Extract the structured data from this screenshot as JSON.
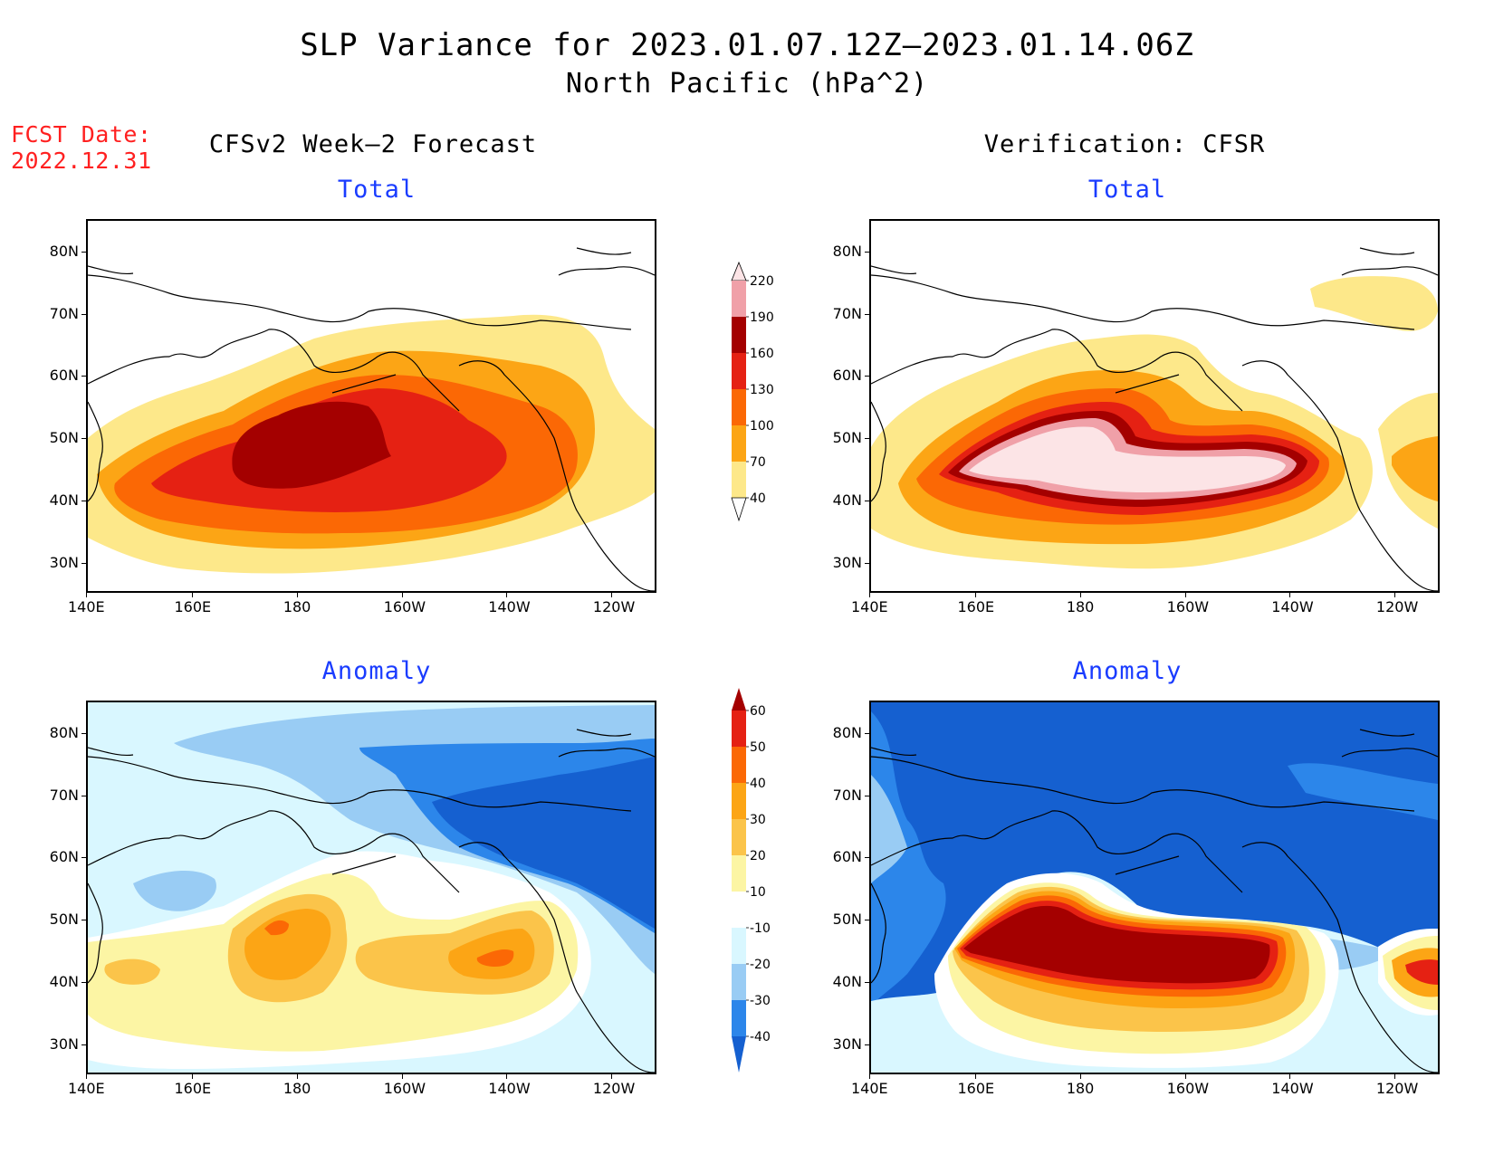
{
  "title": {
    "line1": "SLP Variance for 2023.01.07.12Z–2023.01.14.06Z",
    "line2": "North Pacific (hPa^2)"
  },
  "fcst": {
    "label": "FCST Date:",
    "date": "2022.12.31"
  },
  "columns": {
    "left": "CFSv2 Week–2 Forecast",
    "right": "Verification: CFSR"
  },
  "panels": [
    {
      "id": "fcst-total",
      "title": "Total"
    },
    {
      "id": "verif-total",
      "title": "Total"
    },
    {
      "id": "fcst-anomaly",
      "title": "Anomaly"
    },
    {
      "id": "verif-anomaly",
      "title": "Anomaly"
    }
  ],
  "axes": {
    "lon_ticks": [
      "140E",
      "160E",
      "180",
      "160W",
      "140W",
      "120W"
    ],
    "lat_ticks": [
      "80N",
      "70N",
      "60N",
      "50N",
      "40N",
      "30N"
    ]
  },
  "colorbars": {
    "total": {
      "labels": [
        "40",
        "70",
        "100",
        "130",
        "160",
        "190",
        "220"
      ],
      "colors": [
        "#fde88a",
        "#fca515",
        "#fb6805",
        "#e52113",
        "#a40000",
        "#f0a0a8",
        "#fce4e6"
      ]
    },
    "anomaly": {
      "labels": [
        "-40",
        "-30",
        "-20",
        "-10",
        "10",
        "20",
        "30",
        "40",
        "50",
        "60"
      ],
      "colors": [
        "#1560d0",
        "#2c86ea",
        "#99ccf4",
        "#d9f7ff",
        "#ffffff",
        "#fcf5a4",
        "#fbc44a",
        "#fca515",
        "#fb6805",
        "#e52113",
        "#a40000"
      ]
    }
  },
  "colors": {
    "land_outline": "#000000",
    "title_blue": "#1a3cff",
    "fcst_red": "#ff2020"
  }
}
